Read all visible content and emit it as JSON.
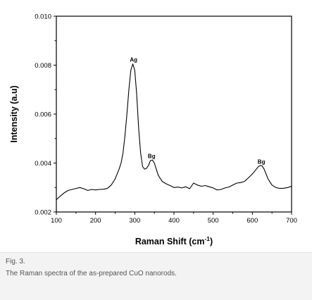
{
  "chart_data": {
    "type": "line",
    "title": "",
    "xlabel": "Raman Shift (cm",
    "xlabel_sup": "-1",
    "xlabel_close": ")",
    "ylabel": "Intensity (a.u)",
    "xlim": [
      100,
      700
    ],
    "ylim": [
      0.002,
      0.01
    ],
    "xticks": [
      "100",
      "200",
      "300",
      "400",
      "500",
      "600",
      "700"
    ],
    "yticks": [
      "0.002",
      "0.004",
      "0.006",
      "0.008",
      "0.010"
    ],
    "grid": false,
    "series": [
      {
        "x": [
          100,
          110,
          120,
          130,
          140,
          150,
          160,
          170,
          180,
          190,
          200,
          210,
          220,
          230,
          240,
          250,
          255,
          260,
          265,
          270,
          275,
          280,
          285,
          290,
          295,
          300,
          305,
          310,
          315,
          320,
          325,
          330,
          335,
          340,
          345,
          350,
          355,
          360,
          370,
          380,
          390,
          400,
          410,
          420,
          430,
          440,
          450,
          460,
          470,
          480,
          490,
          500,
          510,
          520,
          530,
          540,
          550,
          560,
          570,
          580,
          590,
          600,
          605,
          610,
          615,
          620,
          625,
          630,
          635,
          640,
          650,
          660,
          670,
          680,
          690,
          700
        ],
        "y": [
          0.0025,
          0.00265,
          0.00278,
          0.00288,
          0.00292,
          0.00296,
          0.003,
          0.00295,
          0.00288,
          0.00292,
          0.0029,
          0.00292,
          0.00293,
          0.00296,
          0.0031,
          0.00335,
          0.00355,
          0.00375,
          0.004,
          0.0044,
          0.0051,
          0.006,
          0.007,
          0.0078,
          0.00805,
          0.0078,
          0.0068,
          0.0054,
          0.0044,
          0.00385,
          0.00375,
          0.00378,
          0.0039,
          0.0041,
          0.00412,
          0.004,
          0.00375,
          0.0035,
          0.00325,
          0.00315,
          0.00308,
          0.003,
          0.00302,
          0.00298,
          0.00303,
          0.00295,
          0.00318,
          0.0031,
          0.00305,
          0.00308,
          0.00303,
          0.00298,
          0.0029,
          0.00292,
          0.00298,
          0.00302,
          0.0031,
          0.00318,
          0.0032,
          0.00325,
          0.0034,
          0.00355,
          0.00365,
          0.00375,
          0.00385,
          0.0039,
          0.00388,
          0.00375,
          0.00355,
          0.00335,
          0.0031,
          0.003,
          0.00296,
          0.00297,
          0.003,
          0.00305
        ]
      }
    ],
    "annotations": [
      {
        "text": "Ag",
        "x": 297,
        "y": 0.00815
      },
      {
        "text": "Bg",
        "x": 343,
        "y": 0.0042
      },
      {
        "text": "Bg",
        "x": 623,
        "y": 0.00397
      }
    ]
  },
  "caption": {
    "label": "Fig. 3.",
    "text": "The Raman spectra of the as-prepared CuO nanorods."
  }
}
